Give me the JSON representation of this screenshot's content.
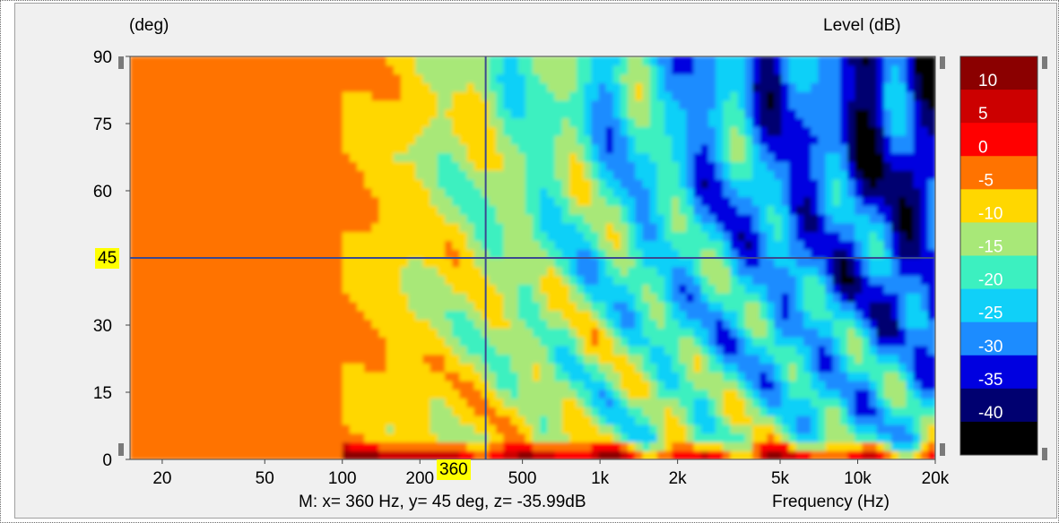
{
  "y_unit": "(deg)",
  "colorbar_title": "Level  (dB)",
  "x_axis_label": "Frequency  (Hz)",
  "cursor": {
    "readout": "M:  x= 360 Hz,  y= 45 deg, z= -35.99dB",
    "x_tag": "360",
    "y_tag": "45"
  },
  "colors": {
    "panel_bg": "#f0f0f0",
    "cursor_line": "#3b4a8f",
    "cursor_tag_bg": "#ffff00"
  },
  "chart_data": {
    "type": "heatmap",
    "title": "",
    "xlabel": "Frequency  (Hz)",
    "ylabel": "(deg)",
    "x_scale": "log",
    "xlim": [
      15,
      20000
    ],
    "ylim": [
      0,
      90
    ],
    "x_ticks": [
      {
        "value": 20,
        "label": "20"
      },
      {
        "value": 50,
        "label": "50"
      },
      {
        "value": 100,
        "label": "100"
      },
      {
        "value": 200,
        "label": "200"
      },
      {
        "value": 500,
        "label": "500"
      },
      {
        "value": 1000,
        "label": "1k"
      },
      {
        "value": 2000,
        "label": "2k"
      },
      {
        "value": 5000,
        "label": "5k"
      },
      {
        "value": 10000,
        "label": "10k"
      },
      {
        "value": 20000,
        "label": "20k"
      }
    ],
    "y_ticks": [
      0,
      15,
      30,
      60,
      75,
      90
    ],
    "colorbar": {
      "title": "Level  (dB)",
      "levels": [
        {
          "label": "10",
          "color": "#8b0000"
        },
        {
          "label": "5",
          "color": "#cc0000"
        },
        {
          "label": "0",
          "color": "#ff0000"
        },
        {
          "label": "-5",
          "color": "#ff7300"
        },
        {
          "label": "-10",
          "color": "#ffd700"
        },
        {
          "label": "-15",
          "color": "#a8e878"
        },
        {
          "label": "-20",
          "color": "#3cf0c0"
        },
        {
          "label": "-25",
          "color": "#10d0f8"
        },
        {
          "label": "-30",
          "color": "#1c8cff"
        },
        {
          "label": "-35",
          "color": "#0000e0"
        },
        {
          "label": "-40",
          "color": "#000070"
        },
        {
          "label": "",
          "color": "#000000"
        }
      ]
    },
    "cursor": {
      "x": 360,
      "y": 45,
      "z": -35.99
    }
  }
}
